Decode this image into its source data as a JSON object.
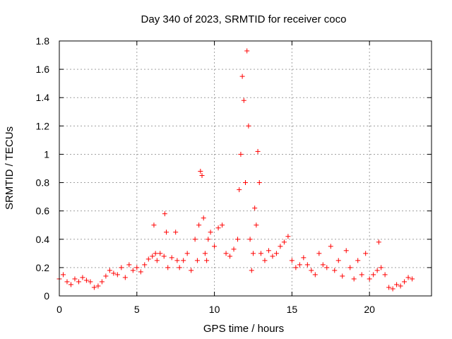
{
  "chart_data": {
    "type": "scatter",
    "title": "Day 340 of 2023, SRMTID for receiver coco",
    "xlabel": "GPS time / hours",
    "ylabel": "SRMTID / TECUs",
    "xlim": [
      0,
      24
    ],
    "ylim": [
      0,
      1.8
    ],
    "xticks": [
      0,
      5,
      10,
      15,
      20
    ],
    "xtick_labels": [
      "0",
      "5",
      "10",
      "15",
      "20"
    ],
    "yticks": [
      0,
      0.2,
      0.4,
      0.6,
      0.8,
      1.0,
      1.2,
      1.4,
      1.6,
      1.8
    ],
    "ytick_labels": [
      "0",
      "0.2",
      "0.4",
      "0.6",
      "0.8",
      "1",
      "1.2",
      "1.4",
      "1.6",
      "1.8"
    ],
    "grid": true,
    "marker": "+",
    "color": "#ff0000",
    "series": [
      {
        "name": "SRMTID",
        "x": [
          0.0,
          0.25,
          0.5,
          0.75,
          1.0,
          1.25,
          1.5,
          1.75,
          2.0,
          2.25,
          2.5,
          2.75,
          3.0,
          3.25,
          3.5,
          3.75,
          4.0,
          4.25,
          4.5,
          4.75,
          5.0,
          5.25,
          5.5,
          5.75,
          6.0,
          6.1,
          6.2,
          6.3,
          6.5,
          6.75,
          6.8,
          6.9,
          7.0,
          7.25,
          7.5,
          7.6,
          7.75,
          8.0,
          8.25,
          8.5,
          8.75,
          8.9,
          9.0,
          9.1,
          9.2,
          9.3,
          9.4,
          9.5,
          9.6,
          9.75,
          10.0,
          10.25,
          10.5,
          10.75,
          11.0,
          11.25,
          11.5,
          11.6,
          11.7,
          11.8,
          11.9,
          12.0,
          12.1,
          12.2,
          12.3,
          12.4,
          12.5,
          12.6,
          12.7,
          12.8,
          12.9,
          13.0,
          13.25,
          13.5,
          13.75,
          14.0,
          14.25,
          14.5,
          14.75,
          15.0,
          15.25,
          15.5,
          15.75,
          16.0,
          16.25,
          16.5,
          16.75,
          17.0,
          17.25,
          17.5,
          17.75,
          18.0,
          18.25,
          18.5,
          18.75,
          19.0,
          19.25,
          19.5,
          19.75,
          20.0,
          20.25,
          20.5,
          20.6,
          20.75,
          21.0,
          21.25,
          21.5,
          21.75,
          22.0,
          22.25,
          22.5,
          22.75
        ],
        "y": [
          0.12,
          0.15,
          0.1,
          0.08,
          0.12,
          0.1,
          0.13,
          0.11,
          0.1,
          0.06,
          0.07,
          0.1,
          0.14,
          0.18,
          0.16,
          0.15,
          0.2,
          0.13,
          0.22,
          0.18,
          0.2,
          0.17,
          0.22,
          0.26,
          0.28,
          0.5,
          0.3,
          0.25,
          0.3,
          0.28,
          0.58,
          0.45,
          0.2,
          0.27,
          0.45,
          0.25,
          0.2,
          0.25,
          0.3,
          0.18,
          0.4,
          0.25,
          0.5,
          0.88,
          0.85,
          0.55,
          0.3,
          0.25,
          0.4,
          0.45,
          0.35,
          0.48,
          0.5,
          0.3,
          0.28,
          0.33,
          0.4,
          0.75,
          1.0,
          1.55,
          1.38,
          0.8,
          1.73,
          1.2,
          0.4,
          0.18,
          0.3,
          0.62,
          0.5,
          1.02,
          0.8,
          0.3,
          0.25,
          0.32,
          0.28,
          0.3,
          0.35,
          0.38,
          0.42,
          0.25,
          0.2,
          0.22,
          0.27,
          0.22,
          0.18,
          0.15,
          0.3,
          0.22,
          0.2,
          0.35,
          0.18,
          0.25,
          0.14,
          0.32,
          0.2,
          0.12,
          0.25,
          0.15,
          0.3,
          0.12,
          0.15,
          0.18,
          0.38,
          0.2,
          0.15,
          0.06,
          0.05,
          0.08,
          0.07,
          0.1,
          0.13,
          0.12
        ]
      }
    ]
  }
}
